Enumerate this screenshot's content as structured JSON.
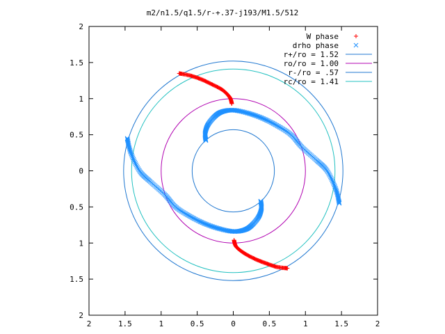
{
  "chart_data": {
    "type": "scatter",
    "title": "m2/n1.5/q1.5/r-+.37-j193/M1.5/512",
    "xlabel": "",
    "ylabel": "",
    "xlim": [
      -2,
      2
    ],
    "ylim": [
      -2,
      2
    ],
    "x_tick_values": [
      -2,
      -1.5,
      -1,
      -0.5,
      0,
      0.5,
      1,
      1.5,
      2
    ],
    "x_tick_labels": [
      "2",
      "1.5",
      "1",
      "0.5",
      "0",
      "0.5",
      "1",
      "1.5",
      "2"
    ],
    "y_tick_values": [
      2,
      1.5,
      1,
      0.5,
      0,
      -0.5,
      -1,
      -1.5,
      -2
    ],
    "y_tick_labels": [
      "2",
      "1.5",
      "1",
      "0.5",
      "0",
      "0.5",
      "1",
      "1.5",
      "2"
    ],
    "grid": false,
    "legend_position": "top-right",
    "series": [
      {
        "name": "W phase",
        "kind": "points",
        "marker": "plus",
        "color": "#ff0000",
        "arms": [
          [
            [
              -0.75,
              1.35
            ],
            [
              -0.6,
              1.32
            ],
            [
              -0.45,
              1.27
            ],
            [
              -0.3,
              1.2
            ],
            [
              -0.15,
              1.12
            ],
            [
              -0.05,
              1.02
            ],
            [
              -0.02,
              0.93
            ]
          ],
          [
            [
              0.75,
              -1.35
            ],
            [
              0.6,
              -1.33
            ],
            [
              0.45,
              -1.28
            ],
            [
              0.3,
              -1.22
            ],
            [
              0.15,
              -1.14
            ],
            [
              0.04,
              -1.05
            ],
            [
              0.01,
              -0.96
            ]
          ]
        ]
      },
      {
        "name": "drho phase",
        "kind": "points",
        "marker": "cross",
        "color": "#1e90ff",
        "arms": [
          [
            [
              -1.47,
              0.45
            ],
            [
              -1.42,
              0.25
            ],
            [
              -1.3,
              0.0
            ],
            [
              -1.15,
              -0.15
            ],
            [
              -0.95,
              -0.33
            ],
            [
              -0.8,
              -0.5
            ],
            [
              -0.6,
              -0.63
            ],
            [
              -0.4,
              -0.73
            ],
            [
              -0.2,
              -0.8
            ],
            [
              0.0,
              -0.84
            ],
            [
              0.15,
              -0.82
            ],
            [
              0.25,
              -0.76
            ],
            [
              0.35,
              -0.64
            ],
            [
              0.39,
              -0.52
            ],
            [
              0.38,
              -0.42
            ]
          ],
          [
            [
              1.47,
              -0.45
            ],
            [
              1.42,
              -0.25
            ],
            [
              1.3,
              0.0
            ],
            [
              1.15,
              0.15
            ],
            [
              0.95,
              0.33
            ],
            [
              0.8,
              0.5
            ],
            [
              0.6,
              0.63
            ],
            [
              0.4,
              0.73
            ],
            [
              0.2,
              0.8
            ],
            [
              0.0,
              0.84
            ],
            [
              -0.15,
              0.82
            ],
            [
              -0.25,
              0.76
            ],
            [
              -0.35,
              0.64
            ],
            [
              -0.39,
              0.52
            ],
            [
              -0.38,
              0.42
            ]
          ]
        ]
      },
      {
        "name": "r+/ro = 1.52",
        "kind": "circle",
        "radius": 1.52,
        "color": "#1f77d0"
      },
      {
        "name": "ro/ro = 1.00",
        "kind": "circle",
        "radius": 1.0,
        "color": "#b000b0"
      },
      {
        "name": "r-/ro = .57",
        "kind": "circle",
        "radius": 0.57,
        "color": "#1f77d0"
      },
      {
        "name": "rc/ro = 1.41",
        "kind": "circle",
        "radius": 1.41,
        "color": "#20c0c0"
      }
    ]
  }
}
